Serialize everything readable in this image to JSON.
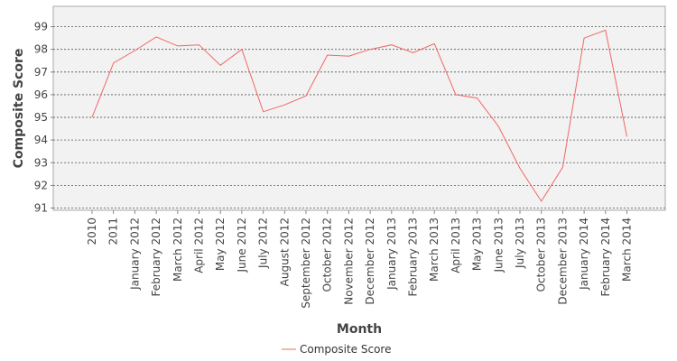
{
  "chart_data": {
    "type": "line",
    "title": "",
    "xlabel": "Month",
    "ylabel": "Composite Score",
    "categories": [
      "2010",
      "2011",
      "January 2012",
      "February 2012",
      "March 2012",
      "April 2012",
      "May 2012",
      "June 2012",
      "July 2012",
      "August 2012",
      "September 2012",
      "October 2012",
      "November 2012",
      "December 2012",
      "January 2013",
      "February 2013",
      "March 2013",
      "April 2013",
      "May 2013",
      "June 2013",
      "July 2013",
      "October 2013",
      "December 2013",
      "January 2014",
      "February 2014",
      "March 2014"
    ],
    "series": [
      {
        "name": "Composite Score",
        "color": "#f26666",
        "values": [
          95.0,
          97.4,
          97.95,
          98.55,
          98.15,
          98.2,
          97.3,
          98.0,
          95.25,
          95.55,
          95.95,
          97.75,
          97.7,
          98.0,
          98.2,
          97.85,
          98.25,
          96.0,
          95.85,
          94.6,
          92.75,
          91.3,
          92.8,
          98.5,
          98.85,
          94.15
        ]
      }
    ],
    "ylim": [
      90.9,
      99.9
    ],
    "yticks": [
      91,
      92,
      93,
      94,
      95,
      96,
      97,
      98,
      99
    ],
    "grid": true,
    "legend": "bottom"
  }
}
